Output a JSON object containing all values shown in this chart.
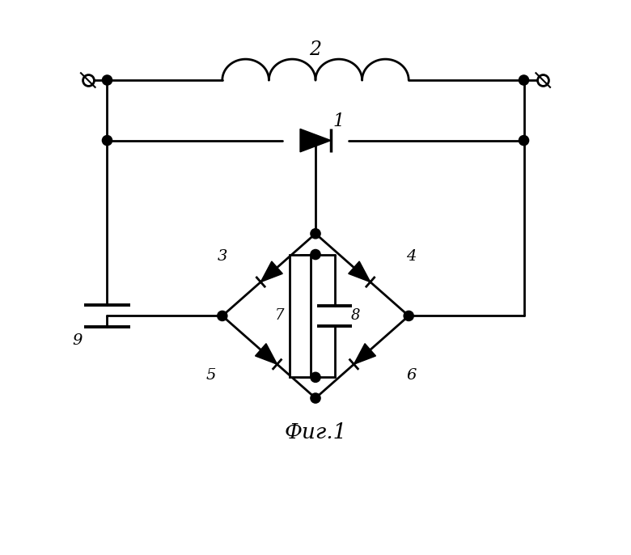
{
  "bg_color": "#ffffff",
  "line_color": "#000000",
  "line_width": 2.0,
  "fig_width": 7.8,
  "fig_height": 6.86,
  "inductor_label": "2",
  "diode_label": "1",
  "cap9_label": "9",
  "d3_label": "3",
  "d4_label": "4",
  "d5_label": "5",
  "d6_label": "6",
  "res_label": "7",
  "cap8_label": "8",
  "fig_label": "Фиг.1"
}
